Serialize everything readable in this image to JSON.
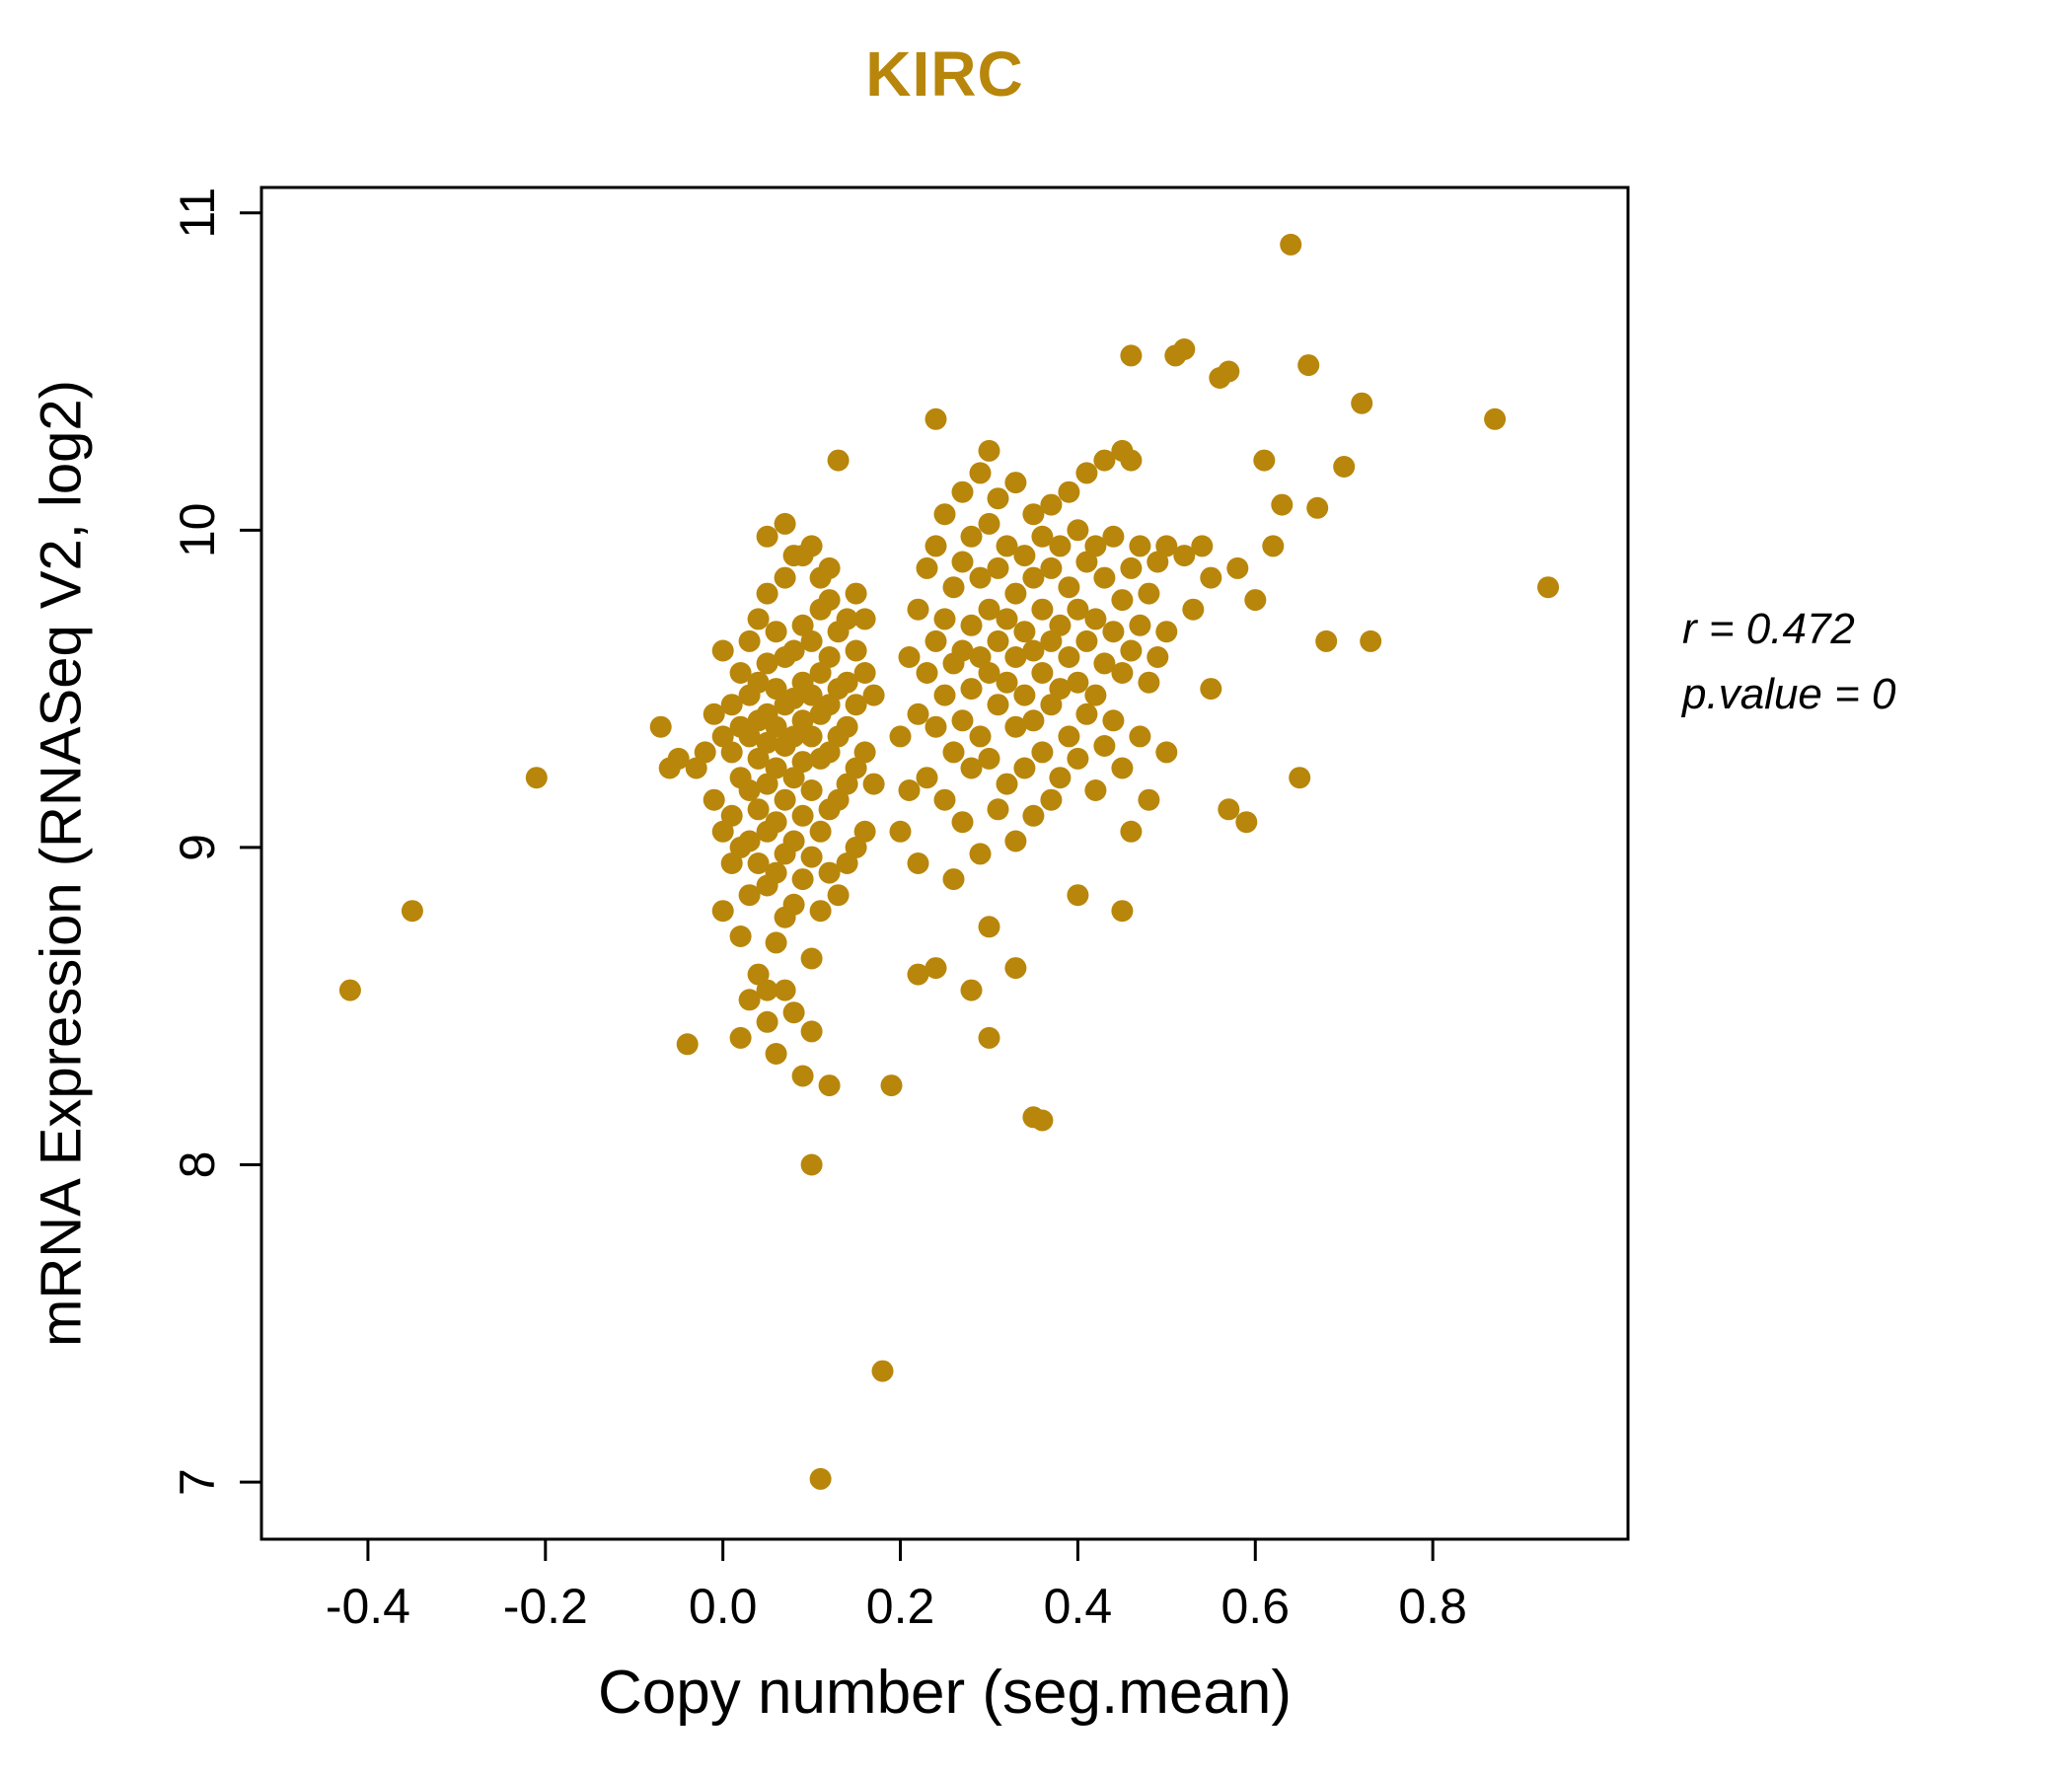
{
  "chart_data": {
    "type": "scatter",
    "title": "KIRC",
    "title_color": "#B8860B",
    "point_color": "#B8860B",
    "xlabel": "Copy number (seg.mean)",
    "ylabel": "mRNA Expression (RNASeq V2, log2)",
    "annotations": [
      "r = 0.472",
      "p.value = 0"
    ],
    "xlim": [
      -0.52,
      1.02
    ],
    "ylim": [
      6.82,
      11.08
    ],
    "xticks": [
      "-0.4",
      "-0.2",
      "0.0",
      "0.2",
      "0.4",
      "0.6",
      "0.8"
    ],
    "yticks": [
      "7",
      "8",
      "9",
      "10",
      "11"
    ],
    "grid": false,
    "legend": "none",
    "points": [
      [
        -0.42,
        8.55
      ],
      [
        -0.35,
        8.8
      ],
      [
        -0.21,
        9.22
      ],
      [
        -0.07,
        9.38
      ],
      [
        -0.06,
        9.25
      ],
      [
        -0.05,
        9.28
      ],
      [
        -0.04,
        8.38
      ],
      [
        -0.03,
        9.25
      ],
      [
        -0.02,
        9.3
      ],
      [
        -0.01,
        9.42
      ],
      [
        -0.01,
        9.15
      ],
      [
        0.0,
        9.62
      ],
      [
        0.0,
        9.35
      ],
      [
        0.0,
        9.05
      ],
      [
        0.0,
        8.8
      ],
      [
        0.01,
        9.45
      ],
      [
        0.01,
        9.3
      ],
      [
        0.01,
        9.1
      ],
      [
        0.01,
        8.95
      ],
      [
        0.02,
        9.55
      ],
      [
        0.02,
        9.38
      ],
      [
        0.02,
        9.22
      ],
      [
        0.02,
        9.0
      ],
      [
        0.02,
        8.72
      ],
      [
        0.02,
        8.4
      ],
      [
        0.03,
        9.65
      ],
      [
        0.03,
        9.48
      ],
      [
        0.03,
        9.35
      ],
      [
        0.03,
        9.18
      ],
      [
        0.03,
        9.02
      ],
      [
        0.03,
        8.85
      ],
      [
        0.03,
        8.52
      ],
      [
        0.04,
        9.72
      ],
      [
        0.04,
        9.52
      ],
      [
        0.04,
        9.4
      ],
      [
        0.04,
        9.28
      ],
      [
        0.04,
        9.12
      ],
      [
        0.04,
        8.95
      ],
      [
        0.04,
        8.6
      ],
      [
        0.05,
        9.98
      ],
      [
        0.05,
        9.8
      ],
      [
        0.05,
        9.58
      ],
      [
        0.05,
        9.42
      ],
      [
        0.05,
        9.33
      ],
      [
        0.05,
        9.2
      ],
      [
        0.05,
        9.05
      ],
      [
        0.05,
        8.88
      ],
      [
        0.05,
        8.55
      ],
      [
        0.05,
        8.45
      ],
      [
        0.06,
        9.68
      ],
      [
        0.06,
        9.5
      ],
      [
        0.06,
        9.38
      ],
      [
        0.06,
        9.25
      ],
      [
        0.06,
        9.08
      ],
      [
        0.06,
        8.92
      ],
      [
        0.06,
        8.7
      ],
      [
        0.06,
        8.35
      ],
      [
        0.07,
        10.02
      ],
      [
        0.07,
        9.85
      ],
      [
        0.07,
        9.6
      ],
      [
        0.07,
        9.45
      ],
      [
        0.07,
        9.32
      ],
      [
        0.07,
        9.15
      ],
      [
        0.07,
        8.98
      ],
      [
        0.07,
        8.78
      ],
      [
        0.07,
        8.55
      ],
      [
        0.08,
        9.92
      ],
      [
        0.08,
        9.62
      ],
      [
        0.08,
        9.47
      ],
      [
        0.08,
        9.35
      ],
      [
        0.08,
        9.22
      ],
      [
        0.08,
        9.02
      ],
      [
        0.08,
        8.82
      ],
      [
        0.08,
        8.48
      ],
      [
        0.09,
        9.92
      ],
      [
        0.09,
        9.7
      ],
      [
        0.09,
        9.52
      ],
      [
        0.09,
        9.4
      ],
      [
        0.09,
        9.27
      ],
      [
        0.09,
        9.1
      ],
      [
        0.09,
        8.9
      ],
      [
        0.09,
        8.28
      ],
      [
        0.1,
        9.95
      ],
      [
        0.1,
        9.65
      ],
      [
        0.1,
        9.48
      ],
      [
        0.1,
        9.35
      ],
      [
        0.1,
        9.18
      ],
      [
        0.1,
        8.97
      ],
      [
        0.1,
        8.65
      ],
      [
        0.1,
        8.42
      ],
      [
        0.1,
        8.0
      ],
      [
        0.11,
        9.85
      ],
      [
        0.11,
        9.75
      ],
      [
        0.11,
        9.55
      ],
      [
        0.11,
        9.42
      ],
      [
        0.11,
        9.28
      ],
      [
        0.11,
        9.05
      ],
      [
        0.11,
        8.8
      ],
      [
        0.11,
        7.01
      ],
      [
        0.12,
        9.88
      ],
      [
        0.12,
        9.78
      ],
      [
        0.12,
        9.6
      ],
      [
        0.12,
        9.45
      ],
      [
        0.12,
        9.3
      ],
      [
        0.12,
        9.12
      ],
      [
        0.12,
        8.92
      ],
      [
        0.12,
        8.25
      ],
      [
        0.13,
        10.22
      ],
      [
        0.13,
        9.68
      ],
      [
        0.13,
        9.5
      ],
      [
        0.13,
        9.35
      ],
      [
        0.13,
        9.15
      ],
      [
        0.13,
        8.85
      ],
      [
        0.14,
        9.72
      ],
      [
        0.14,
        9.52
      ],
      [
        0.14,
        9.38
      ],
      [
        0.14,
        9.2
      ],
      [
        0.14,
        8.95
      ],
      [
        0.15,
        9.8
      ],
      [
        0.15,
        9.62
      ],
      [
        0.15,
        9.45
      ],
      [
        0.15,
        9.25
      ],
      [
        0.15,
        9.0
      ],
      [
        0.16,
        9.72
      ],
      [
        0.16,
        9.55
      ],
      [
        0.16,
        9.3
      ],
      [
        0.16,
        9.05
      ],
      [
        0.17,
        9.48
      ],
      [
        0.17,
        9.2
      ],
      [
        0.18,
        7.35
      ],
      [
        0.19,
        8.25
      ],
      [
        0.2,
        9.35
      ],
      [
        0.2,
        9.05
      ],
      [
        0.21,
        9.6
      ],
      [
        0.21,
        9.18
      ],
      [
        0.22,
        9.75
      ],
      [
        0.22,
        9.42
      ],
      [
        0.22,
        8.95
      ],
      [
        0.22,
        8.6
      ],
      [
        0.23,
        9.88
      ],
      [
        0.23,
        9.55
      ],
      [
        0.23,
        9.22
      ],
      [
        0.24,
        10.35
      ],
      [
        0.24,
        9.95
      ],
      [
        0.24,
        9.65
      ],
      [
        0.24,
        9.38
      ],
      [
        0.24,
        8.62
      ],
      [
        0.25,
        10.05
      ],
      [
        0.25,
        9.72
      ],
      [
        0.25,
        9.48
      ],
      [
        0.25,
        9.15
      ],
      [
        0.26,
        9.82
      ],
      [
        0.26,
        9.58
      ],
      [
        0.26,
        9.3
      ],
      [
        0.26,
        8.9
      ],
      [
        0.27,
        10.12
      ],
      [
        0.27,
        9.9
      ],
      [
        0.27,
        9.62
      ],
      [
        0.27,
        9.4
      ],
      [
        0.27,
        9.08
      ],
      [
        0.28,
        9.98
      ],
      [
        0.28,
        9.7
      ],
      [
        0.28,
        9.5
      ],
      [
        0.28,
        9.25
      ],
      [
        0.28,
        8.55
      ],
      [
        0.29,
        10.18
      ],
      [
        0.29,
        9.85
      ],
      [
        0.29,
        9.6
      ],
      [
        0.29,
        9.35
      ],
      [
        0.29,
        8.98
      ],
      [
        0.3,
        10.25
      ],
      [
        0.3,
        10.02
      ],
      [
        0.3,
        9.75
      ],
      [
        0.3,
        9.55
      ],
      [
        0.3,
        9.28
      ],
      [
        0.3,
        8.75
      ],
      [
        0.3,
        8.4
      ],
      [
        0.31,
        10.1
      ],
      [
        0.31,
        9.88
      ],
      [
        0.31,
        9.65
      ],
      [
        0.31,
        9.45
      ],
      [
        0.31,
        9.12
      ],
      [
        0.32,
        9.95
      ],
      [
        0.32,
        9.72
      ],
      [
        0.32,
        9.52
      ],
      [
        0.32,
        9.2
      ],
      [
        0.33,
        10.15
      ],
      [
        0.33,
        9.8
      ],
      [
        0.33,
        9.6
      ],
      [
        0.33,
        9.38
      ],
      [
        0.33,
        9.02
      ],
      [
        0.33,
        8.62
      ],
      [
        0.34,
        9.92
      ],
      [
        0.34,
        9.68
      ],
      [
        0.34,
        9.48
      ],
      [
        0.34,
        9.25
      ],
      [
        0.35,
        10.05
      ],
      [
        0.35,
        9.85
      ],
      [
        0.35,
        9.62
      ],
      [
        0.35,
        9.4
      ],
      [
        0.35,
        9.1
      ],
      [
        0.35,
        8.15
      ],
      [
        0.36,
        9.98
      ],
      [
        0.36,
        9.75
      ],
      [
        0.36,
        9.55
      ],
      [
        0.36,
        9.3
      ],
      [
        0.36,
        8.14
      ],
      [
        0.37,
        10.08
      ],
      [
        0.37,
        9.88
      ],
      [
        0.37,
        9.65
      ],
      [
        0.37,
        9.45
      ],
      [
        0.37,
        9.15
      ],
      [
        0.38,
        9.95
      ],
      [
        0.38,
        9.7
      ],
      [
        0.38,
        9.5
      ],
      [
        0.38,
        9.22
      ],
      [
        0.39,
        10.12
      ],
      [
        0.39,
        9.82
      ],
      [
        0.39,
        9.6
      ],
      [
        0.39,
        9.35
      ],
      [
        0.4,
        10.0
      ],
      [
        0.4,
        9.75
      ],
      [
        0.4,
        9.52
      ],
      [
        0.4,
        9.28
      ],
      [
        0.4,
        8.85
      ],
      [
        0.41,
        10.18
      ],
      [
        0.41,
        9.9
      ],
      [
        0.41,
        9.65
      ],
      [
        0.41,
        9.42
      ],
      [
        0.42,
        9.95
      ],
      [
        0.42,
        9.72
      ],
      [
        0.42,
        9.48
      ],
      [
        0.42,
        9.18
      ],
      [
        0.43,
        10.22
      ],
      [
        0.43,
        9.85
      ],
      [
        0.43,
        9.58
      ],
      [
        0.43,
        9.32
      ],
      [
        0.44,
        9.98
      ],
      [
        0.44,
        9.68
      ],
      [
        0.44,
        9.4
      ],
      [
        0.45,
        10.25
      ],
      [
        0.45,
        9.78
      ],
      [
        0.45,
        9.55
      ],
      [
        0.45,
        9.25
      ],
      [
        0.45,
        8.8
      ],
      [
        0.46,
        10.55
      ],
      [
        0.46,
        10.22
      ],
      [
        0.46,
        9.88
      ],
      [
        0.46,
        9.62
      ],
      [
        0.46,
        9.05
      ],
      [
        0.47,
        9.95
      ],
      [
        0.47,
        9.7
      ],
      [
        0.47,
        9.35
      ],
      [
        0.48,
        9.8
      ],
      [
        0.48,
        9.52
      ],
      [
        0.48,
        9.15
      ],
      [
        0.49,
        9.9
      ],
      [
        0.49,
        9.6
      ],
      [
        0.5,
        9.95
      ],
      [
        0.5,
        9.68
      ],
      [
        0.5,
        9.3
      ],
      [
        0.51,
        10.55
      ],
      [
        0.52,
        10.57
      ],
      [
        0.52,
        9.92
      ],
      [
        0.53,
        9.75
      ],
      [
        0.54,
        9.95
      ],
      [
        0.55,
        9.85
      ],
      [
        0.55,
        9.5
      ],
      [
        0.56,
        10.48
      ],
      [
        0.57,
        10.5
      ],
      [
        0.57,
        9.12
      ],
      [
        0.58,
        9.88
      ],
      [
        0.59,
        9.08
      ],
      [
        0.6,
        9.78
      ],
      [
        0.61,
        10.22
      ],
      [
        0.62,
        9.95
      ],
      [
        0.63,
        10.08
      ],
      [
        0.64,
        10.9
      ],
      [
        0.65,
        9.22
      ],
      [
        0.66,
        10.52
      ],
      [
        0.67,
        10.07
      ],
      [
        0.68,
        9.65
      ],
      [
        0.7,
        10.2
      ],
      [
        0.72,
        10.4
      ],
      [
        0.73,
        9.65
      ],
      [
        0.87,
        10.35
      ],
      [
        0.93,
        9.82
      ]
    ]
  }
}
